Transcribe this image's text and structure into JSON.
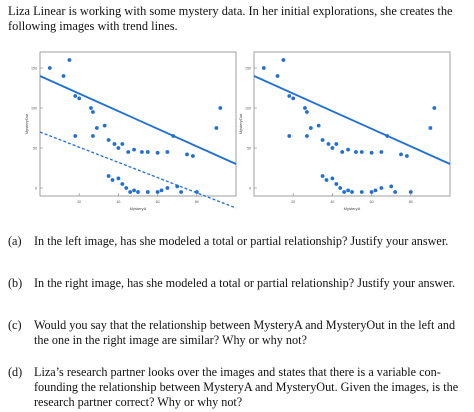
{
  "intro": {
    "line1": "Liza Linear is working with some mystery data. In her initial explorations, she creates the",
    "line2": "following images with trend lines."
  },
  "chart_data": [
    {
      "type": "scatter",
      "xlabel": "MysteryA",
      "ylabel": "MysteryOut",
      "xlim": [
        0,
        100
      ],
      "ylim": [
        -10,
        170
      ],
      "yticks": [
        "150",
        "100",
        "50",
        "0"
      ],
      "xticks": [
        "20",
        "40",
        "60",
        "80"
      ],
      "accent": "#1f6fd6",
      "points": [
        [
          5,
          150
        ],
        [
          12,
          140
        ],
        [
          15,
          160
        ],
        [
          18,
          115
        ],
        [
          20,
          112
        ],
        [
          18,
          65
        ],
        [
          26,
          100
        ],
        [
          27,
          95
        ],
        [
          29,
          75
        ],
        [
          27,
          65
        ],
        [
          33,
          78
        ],
        [
          35,
          60
        ],
        [
          38,
          55
        ],
        [
          40,
          50
        ],
        [
          42,
          55
        ],
        [
          45,
          45
        ],
        [
          48,
          48
        ],
        [
          52,
          45
        ],
        [
          55,
          45
        ],
        [
          60,
          44
        ],
        [
          65,
          45
        ],
        [
          68,
          65
        ],
        [
          75,
          42
        ],
        [
          78,
          40
        ],
        [
          90,
          75
        ],
        [
          92,
          100
        ],
        [
          35,
          15
        ],
        [
          37,
          10
        ],
        [
          40,
          12
        ],
        [
          42,
          5
        ],
        [
          44,
          0
        ],
        [
          46,
          -5
        ],
        [
          48,
          -3
        ],
        [
          50,
          -5
        ],
        [
          55,
          -5
        ],
        [
          60,
          -5
        ],
        [
          62,
          -3
        ],
        [
          65,
          0
        ],
        [
          70,
          2
        ],
        [
          72,
          -5
        ],
        [
          80,
          -5
        ]
      ],
      "trend_lines": [
        {
          "style": "solid",
          "from": [
            0,
            140
          ],
          "to": [
            100,
            30
          ]
        },
        {
          "style": "dashed",
          "from": [
            0,
            70
          ],
          "to": [
            100,
            -25
          ]
        }
      ]
    },
    {
      "type": "scatter",
      "xlabel": "MysteryA",
      "ylabel": "MysteryOut",
      "xlim": [
        0,
        100
      ],
      "ylim": [
        -10,
        170
      ],
      "yticks": [
        "150",
        "100",
        "50",
        "0"
      ],
      "xticks": [
        "20",
        "40",
        "60",
        "80"
      ],
      "accent": "#1f6fd6",
      "points": [
        [
          5,
          150
        ],
        [
          12,
          140
        ],
        [
          15,
          160
        ],
        [
          18,
          115
        ],
        [
          20,
          112
        ],
        [
          18,
          65
        ],
        [
          26,
          100
        ],
        [
          27,
          95
        ],
        [
          29,
          75
        ],
        [
          27,
          65
        ],
        [
          33,
          78
        ],
        [
          35,
          60
        ],
        [
          38,
          55
        ],
        [
          40,
          50
        ],
        [
          42,
          55
        ],
        [
          45,
          45
        ],
        [
          48,
          48
        ],
        [
          52,
          45
        ],
        [
          55,
          45
        ],
        [
          60,
          44
        ],
        [
          65,
          45
        ],
        [
          68,
          65
        ],
        [
          75,
          42
        ],
        [
          78,
          40
        ],
        [
          90,
          75
        ],
        [
          92,
          100
        ],
        [
          35,
          15
        ],
        [
          37,
          10
        ],
        [
          40,
          12
        ],
        [
          42,
          5
        ],
        [
          44,
          0
        ],
        [
          46,
          -5
        ],
        [
          48,
          -3
        ],
        [
          50,
          -5
        ],
        [
          55,
          -5
        ],
        [
          60,
          -5
        ],
        [
          62,
          -3
        ],
        [
          65,
          0
        ],
        [
          70,
          2
        ],
        [
          72,
          -5
        ],
        [
          80,
          -5
        ]
      ],
      "trend_lines": [
        {
          "style": "solid",
          "from": [
            0,
            140
          ],
          "to": [
            100,
            30
          ]
        }
      ]
    }
  ],
  "questions": {
    "a": {
      "label": "(a)",
      "text": "In the left image, has she modeled a total or partial relationship? Justify your answer."
    },
    "b": {
      "label": "(b)",
      "text": "In the right image, has she modeled a total or partial relationship? Justify your answer."
    },
    "c": {
      "label": "(c)",
      "line1": "Would you say that the relationship between MysteryA and MysteryOut in the left and",
      "line2": "the one in the right image are similar? Why or why not?"
    },
    "d": {
      "label": "(d)",
      "line1": "Liza’s research partner looks over the images and states that there is a variable con-",
      "line2": "founding the relationship between MysteryA and MysteryOut. Given the images, is the",
      "line3": "research partner correct? Why or why not?"
    }
  }
}
